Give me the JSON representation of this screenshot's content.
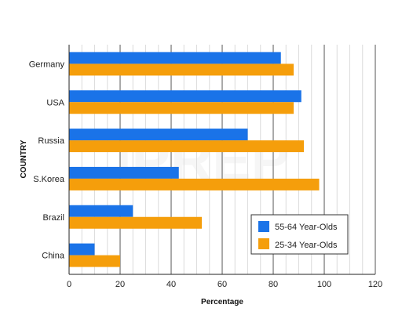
{
  "chart_data": {
    "type": "bar",
    "orientation": "horizontal",
    "categories": [
      "Germany",
      "USA",
      "Russia",
      "S.Korea",
      "Brazil",
      "China"
    ],
    "series": [
      {
        "name": "55-64 Year-Olds",
        "values": [
          83,
          91,
          70,
          43,
          25,
          10
        ],
        "color": "#1a73e8"
      },
      {
        "name": "25-34 Year-Olds",
        "values": [
          88,
          88,
          92,
          98,
          52,
          20
        ],
        "color": "#f59e0b"
      }
    ],
    "xlabel": "Percentage",
    "ylabel": "COUNTRY",
    "xlim": [
      0,
      120
    ],
    "xticks": [
      0,
      20,
      40,
      60,
      80,
      100,
      120
    ],
    "grid": true,
    "legend_position": "bottom-right"
  },
  "watermark": "IPREP"
}
